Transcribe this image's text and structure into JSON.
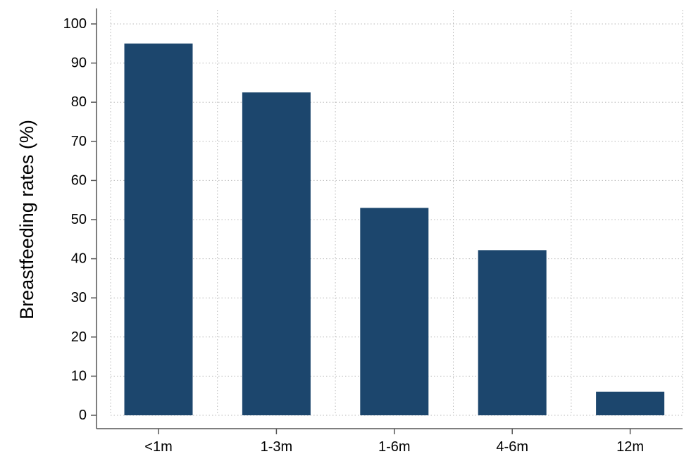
{
  "chart_data": {
    "type": "bar",
    "title": "",
    "xlabel": "",
    "ylabel": "Breastfeeding rates (%)",
    "categories": [
      "<1m",
      "1-3m",
      "1-6m",
      "4-6m",
      "12m"
    ],
    "values": [
      95,
      82.5,
      53,
      42.2,
      6
    ],
    "ylim": [
      0,
      100
    ],
    "yticks": [
      "0",
      "10",
      "20",
      "30",
      "40",
      "50",
      "60",
      "70",
      "80",
      "90",
      "100"
    ],
    "grid": true,
    "legend": "none",
    "colors": {
      "bar": "#1c466d",
      "grid": "#b8b8b8",
      "axis": "#555555"
    }
  }
}
